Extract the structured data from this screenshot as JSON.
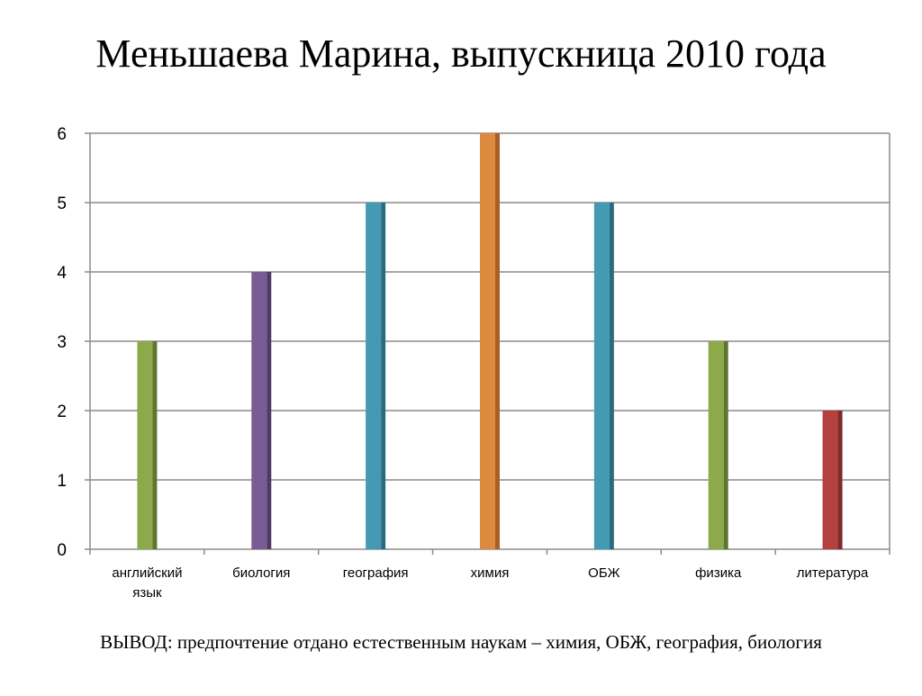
{
  "slide": {
    "title": "Меньшаева Марина, выпускница 2010 года",
    "conclusion": "ВЫВОД: предпочтение отдано естественным наукам – химия, ОБЖ, география, биология"
  },
  "chart_data": {
    "type": "bar",
    "title": "",
    "xlabel": "",
    "ylabel": "",
    "ylim": [
      0,
      6
    ],
    "yticks": [
      0,
      1,
      2,
      3,
      4,
      5,
      6
    ],
    "grid": true,
    "legend": "none",
    "categories": [
      "английский язык",
      "биология",
      "география",
      "химия",
      "ОБЖ",
      "физика",
      "литература"
    ],
    "category_lines": [
      [
        "английский",
        "язык"
      ],
      [
        "биология"
      ],
      [
        "география"
      ],
      [
        "химия"
      ],
      [
        "ОБЖ"
      ],
      [
        "физика"
      ],
      [
        "литература"
      ]
    ],
    "values": [
      3,
      4,
      5,
      6,
      5,
      3,
      2
    ],
    "bar_colors": [
      "#8daa4a",
      "#7a5c94",
      "#4499b3",
      "#de8a3e",
      "#4499b3",
      "#8daa4a",
      "#b5403f"
    ],
    "bar_side_colors": [
      "#5f7530",
      "#4f3a66",
      "#2a6b80",
      "#a6602a",
      "#2a6b80",
      "#5f7530",
      "#7e2a2a"
    ]
  }
}
